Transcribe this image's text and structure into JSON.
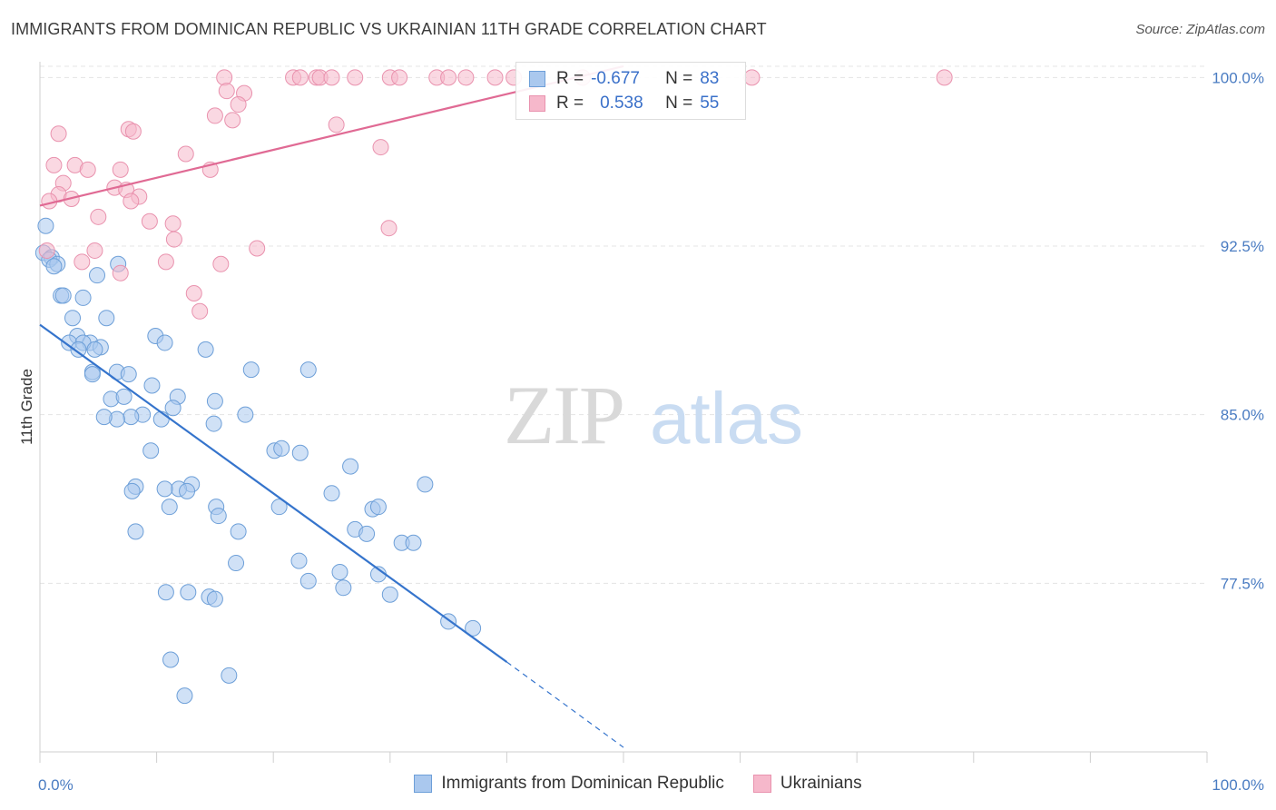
{
  "header": {
    "title": "IMMIGRANTS FROM DOMINICAN REPUBLIC VS UKRAINIAN 11TH GRADE CORRELATION CHART",
    "source": "Source: ZipAtlas.com"
  },
  "watermark": {
    "part1": "ZIP",
    "part2": "atlas"
  },
  "legend": {
    "rows": [
      {
        "r_label": "R =",
        "r_value": "-0.677",
        "n_label": "N =",
        "n_value": "83"
      },
      {
        "r_label": "R =",
        "r_value": "0.538",
        "n_label": "N =",
        "n_value": "55"
      }
    ]
  },
  "bottom_legend": {
    "series1": "Immigrants from Dominican Republic",
    "series2": "Ukrainians"
  },
  "colors": {
    "blue_fill": "#aac8ee",
    "blue_stroke": "#6d9fd8",
    "blue_line": "#3574cc",
    "pink_fill": "#f6b8cb",
    "pink_stroke": "#e992ae",
    "pink_line": "#e06a94",
    "tick": "#4a7cc2",
    "grid": "#e4e4e4"
  },
  "chart_data": {
    "type": "scatter",
    "title": "IMMIGRANTS FROM DOMINICAN REPUBLIC VS UKRAINIAN 11TH GRADE CORRELATION CHART",
    "xlabel": "",
    "ylabel": "11th Grade",
    "xlim": [
      0,
      100
    ],
    "ylim": [
      70.0,
      100.7
    ],
    "x_tick_labels": [
      "0.0%",
      "100.0%"
    ],
    "y_ticks": [
      77.5,
      85.0,
      92.5,
      100.0
    ],
    "y_tick_labels": [
      "77.5%",
      "85.0%",
      "92.5%",
      "100.0%"
    ],
    "grid": true,
    "legend_position": "top-center",
    "series": [
      {
        "name": "Immigrants from Dominican Republic",
        "color": "#aac8ee",
        "R": -0.677,
        "N": 83,
        "trend": {
          "x": [
            0.0,
            40.0
          ],
          "y": [
            89.0,
            74.0
          ],
          "dashed_to": [
            50.0,
            70.2
          ]
        },
        "points": [
          [
            0.5,
            93.4
          ],
          [
            0.3,
            92.2
          ],
          [
            1.0,
            92.0
          ],
          [
            0.8,
            91.9
          ],
          [
            1.5,
            91.7
          ],
          [
            1.2,
            91.6
          ],
          [
            1.8,
            90.3
          ],
          [
            2.0,
            90.3
          ],
          [
            3.7,
            90.2
          ],
          [
            4.9,
            91.2
          ],
          [
            6.7,
            91.7
          ],
          [
            5.7,
            89.3
          ],
          [
            2.8,
            89.3
          ],
          [
            3.2,
            88.5
          ],
          [
            2.5,
            88.2
          ],
          [
            4.3,
            88.2
          ],
          [
            3.7,
            88.2
          ],
          [
            5.2,
            88.0
          ],
          [
            3.3,
            87.9
          ],
          [
            4.7,
            87.9
          ],
          [
            4.5,
            86.9
          ],
          [
            6.6,
            86.9
          ],
          [
            7.6,
            86.8
          ],
          [
            9.6,
            86.3
          ],
          [
            9.9,
            88.5
          ],
          [
            10.7,
            88.2
          ],
          [
            14.2,
            87.9
          ],
          [
            18.1,
            87.0
          ],
          [
            23.0,
            87.0
          ],
          [
            11.8,
            85.8
          ],
          [
            6.1,
            85.7
          ],
          [
            7.2,
            85.8
          ],
          [
            8.8,
            85.0
          ],
          [
            7.8,
            84.9
          ],
          [
            6.6,
            84.8
          ],
          [
            5.5,
            84.9
          ],
          [
            10.4,
            84.8
          ],
          [
            14.9,
            84.6
          ],
          [
            17.6,
            85.0
          ],
          [
            11.4,
            85.3
          ],
          [
            15.0,
            85.6
          ],
          [
            20.1,
            83.4
          ],
          [
            20.7,
            83.5
          ],
          [
            22.3,
            83.3
          ],
          [
            9.5,
            83.4
          ],
          [
            13.0,
            81.9
          ],
          [
            11.9,
            81.7
          ],
          [
            10.7,
            81.7
          ],
          [
            8.2,
            81.8
          ],
          [
            7.9,
            81.6
          ],
          [
            12.6,
            81.6
          ],
          [
            11.1,
            80.9
          ],
          [
            15.1,
            80.9
          ],
          [
            20.5,
            80.9
          ],
          [
            25.0,
            81.5
          ],
          [
            26.6,
            82.7
          ],
          [
            28.5,
            80.8
          ],
          [
            29.0,
            80.9
          ],
          [
            33.0,
            81.9
          ],
          [
            15.3,
            80.5
          ],
          [
            8.2,
            79.8
          ],
          [
            17.0,
            79.8
          ],
          [
            27.0,
            79.9
          ],
          [
            28.0,
            79.7
          ],
          [
            31.0,
            79.3
          ],
          [
            32.0,
            79.3
          ],
          [
            22.2,
            78.5
          ],
          [
            16.8,
            78.4
          ],
          [
            25.7,
            78.0
          ],
          [
            23.0,
            77.6
          ],
          [
            26.0,
            77.3
          ],
          [
            29.0,
            77.9
          ],
          [
            10.8,
            77.1
          ],
          [
            12.7,
            77.1
          ],
          [
            14.5,
            76.9
          ],
          [
            15.0,
            76.8
          ],
          [
            30.0,
            77.0
          ],
          [
            35.0,
            75.8
          ],
          [
            37.1,
            75.5
          ],
          [
            11.2,
            74.1
          ],
          [
            16.2,
            73.4
          ],
          [
            12.4,
            72.5
          ],
          [
            4.5,
            86.8
          ]
        ]
      },
      {
        "name": "Ukrainians",
        "color": "#f6b8cb",
        "R": 0.538,
        "N": 55,
        "trend": {
          "x": [
            0.0,
            50.0
          ],
          "y": [
            94.3,
            100.5
          ]
        },
        "points": [
          [
            15.8,
            100.0
          ],
          [
            21.7,
            100.0
          ],
          [
            22.3,
            100.0
          ],
          [
            23.7,
            100.0
          ],
          [
            24.0,
            100.0
          ],
          [
            25.0,
            100.0
          ],
          [
            27.0,
            100.0
          ],
          [
            30.0,
            100.0
          ],
          [
            30.8,
            100.0
          ],
          [
            34.0,
            100.0
          ],
          [
            35.0,
            100.0
          ],
          [
            36.5,
            100.0
          ],
          [
            39.0,
            100.0
          ],
          [
            40.6,
            100.0
          ],
          [
            46.5,
            100.0
          ],
          [
            61.0,
            100.0
          ],
          [
            77.5,
            100.0
          ],
          [
            16.0,
            99.4
          ],
          [
            17.5,
            99.3
          ],
          [
            17.0,
            98.8
          ],
          [
            15.0,
            98.3
          ],
          [
            16.5,
            98.1
          ],
          [
            25.4,
            97.9
          ],
          [
            7.6,
            97.7
          ],
          [
            8.0,
            97.6
          ],
          [
            1.6,
            97.5
          ],
          [
            29.2,
            96.9
          ],
          [
            12.5,
            96.6
          ],
          [
            1.2,
            96.1
          ],
          [
            3.0,
            96.1
          ],
          [
            6.9,
            95.9
          ],
          [
            4.1,
            95.9
          ],
          [
            14.6,
            95.9
          ],
          [
            2.0,
            95.3
          ],
          [
            6.4,
            95.1
          ],
          [
            7.4,
            95.0
          ],
          [
            1.6,
            94.8
          ],
          [
            8.5,
            94.7
          ],
          [
            2.7,
            94.6
          ],
          [
            7.8,
            94.5
          ],
          [
            0.8,
            94.5
          ],
          [
            5.0,
            93.8
          ],
          [
            9.4,
            93.6
          ],
          [
            11.4,
            93.5
          ],
          [
            29.9,
            93.3
          ],
          [
            11.5,
            92.8
          ],
          [
            18.6,
            92.4
          ],
          [
            4.7,
            92.3
          ],
          [
            0.6,
            92.3
          ],
          [
            3.6,
            91.8
          ],
          [
            10.8,
            91.8
          ],
          [
            15.5,
            91.7
          ],
          [
            6.9,
            91.3
          ],
          [
            13.2,
            90.4
          ],
          [
            13.7,
            89.6
          ]
        ]
      }
    ]
  }
}
